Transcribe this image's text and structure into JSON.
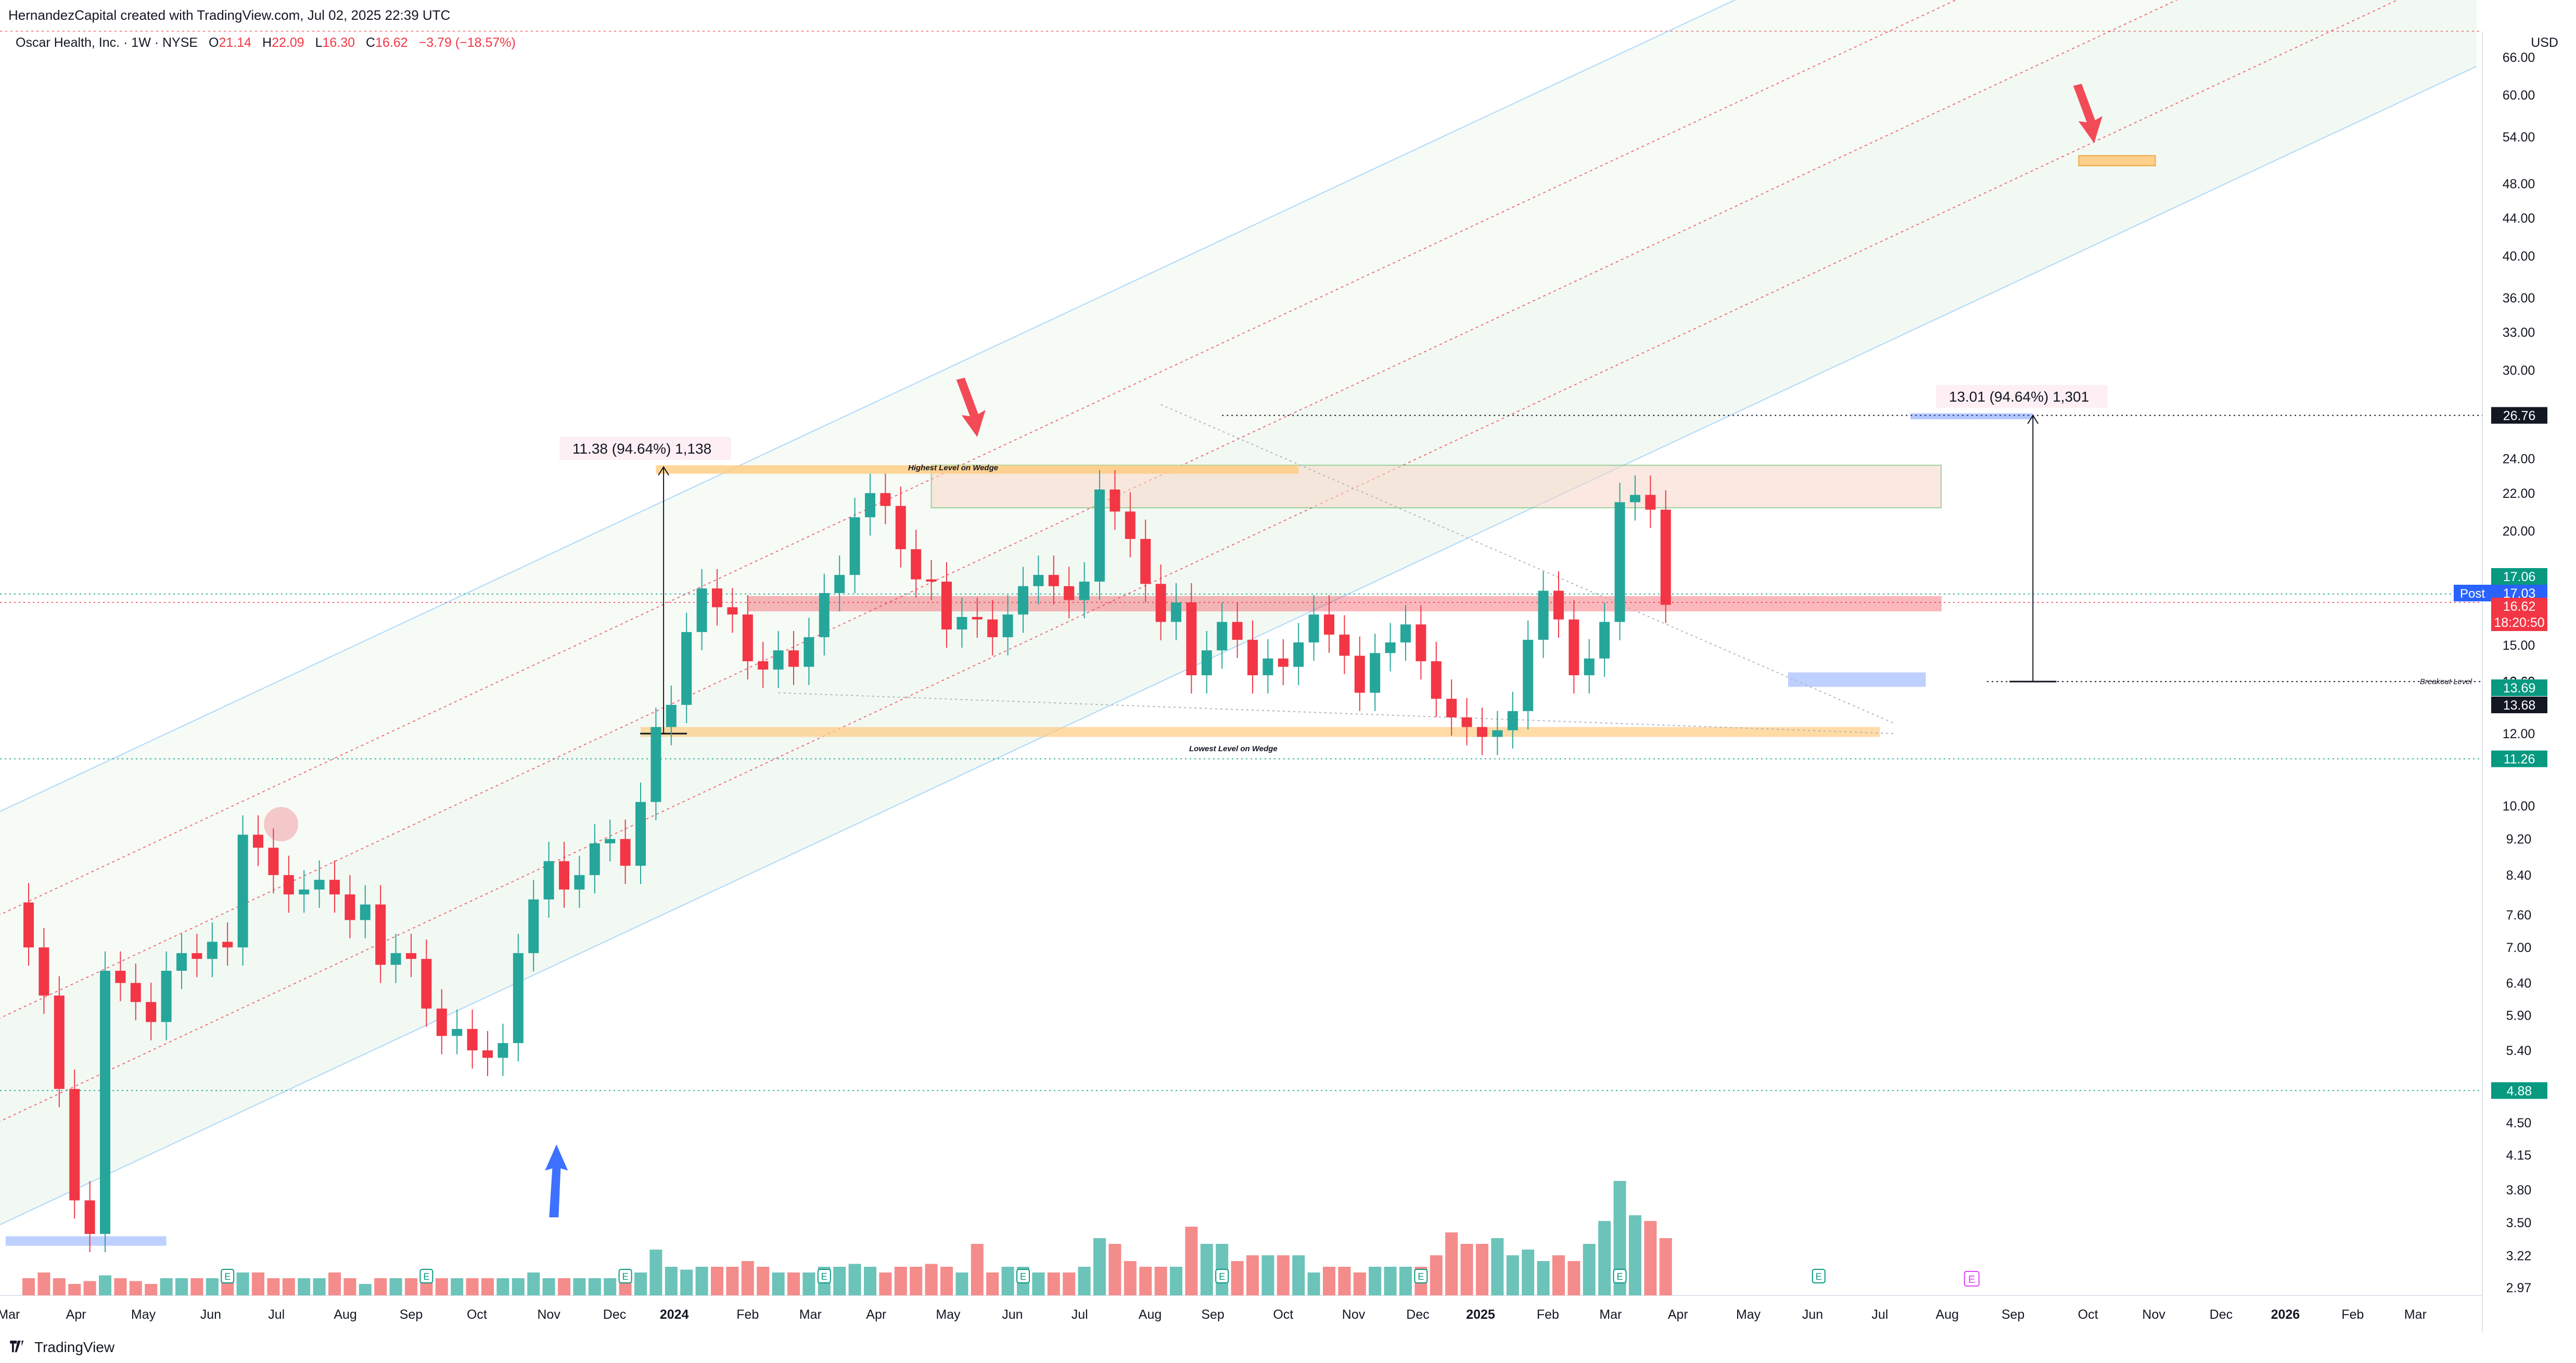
{
  "header": {
    "created_by": "HernandezCapital created with TradingView.com, Jul 02, 2025 22:39 UTC",
    "symbol": "Oscar Health, Inc. · 1W · NYSE",
    "open_label": "O",
    "open": "21.14",
    "high_label": "H",
    "high": "22.09",
    "low_label": "L",
    "low": "16.30",
    "close_label": "C",
    "close": "16.62",
    "change": "−3.79 (−18.57%)",
    "currency": "USD"
  },
  "footer": {
    "brand": "TradingView"
  },
  "chart_data": {
    "type": "candlestick",
    "y_scale": "log",
    "ylim": [
      2.97,
      66.0
    ],
    "y_ticks": [
      "66.00",
      "60.00",
      "54.00",
      "48.00",
      "44.00",
      "40.00",
      "36.00",
      "33.00",
      "30.00",
      "26.76",
      "24.00",
      "22.00",
      "20.00",
      "17.06",
      "15.00",
      "13.69",
      "13.68",
      "12.00",
      "11.26",
      "10.00",
      "9.20",
      "8.40",
      "7.60",
      "7.00",
      "6.40",
      "5.90",
      "5.40",
      "4.88",
      "4.50",
      "4.15",
      "3.80",
      "3.50",
      "3.22",
      "2.97"
    ],
    "x_ticks": [
      "Mar",
      "Apr",
      "May",
      "Jun",
      "Jul",
      "Aug",
      "Sep",
      "Oct",
      "Nov",
      "Dec",
      "2024",
      "Feb",
      "Mar",
      "Apr",
      "May",
      "Jun",
      "Jul",
      "Aug",
      "Sep",
      "Oct",
      "Nov",
      "Dec",
      "2025",
      "Feb",
      "Mar",
      "Apr",
      "May",
      "Jun",
      "Jul",
      "Aug",
      "Sep",
      "Oct",
      "Nov",
      "Dec",
      "2026",
      "Feb",
      "Mar"
    ],
    "price_badges": [
      {
        "label": "17.06",
        "color": "#089981"
      },
      {
        "label": "Post",
        "value": "17.03",
        "color": "#2962ff"
      },
      {
        "label": "16.62",
        "sub": "18:20:50",
        "color": "#f23645"
      },
      {
        "label": "26.76",
        "color": "#131722"
      },
      {
        "label": "13.69",
        "color": "#089981"
      },
      {
        "label": "13.68",
        "color": "#131722"
      },
      {
        "label": "11.26",
        "color": "#089981"
      },
      {
        "label": "4.88",
        "color": "#089981"
      }
    ],
    "annotations": [
      {
        "text": "11.38 (94.64%) 1,138"
      },
      {
        "text": "13.01 (94.64%) 1,301"
      },
      {
        "text": "Highest Level on Wedge"
      },
      {
        "text": "Lowest Level on Wedge"
      },
      {
        "text": "Breakout Level"
      }
    ],
    "earnings_marker": "E",
    "colors": {
      "up": "#26a69a",
      "down": "#f23645",
      "up_vol": "#6cc3b9",
      "down_vol": "#f48c8c"
    }
  }
}
